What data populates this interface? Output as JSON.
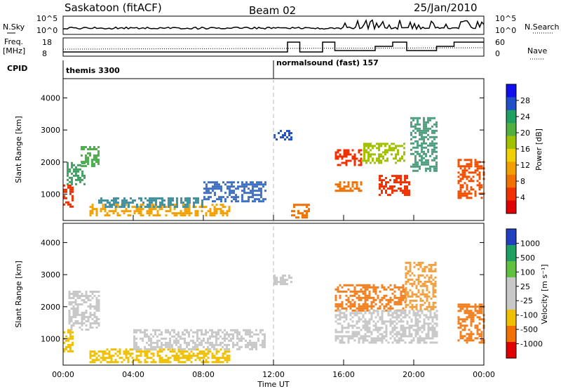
{
  "header": {
    "station": "Saskatoon (fitACF)",
    "beam": "Beam 02",
    "date": "25/Jan/2010"
  },
  "strips": {
    "nsky_label": "N.Sky",
    "nsky_ticks": [
      "10^5",
      "10^0"
    ],
    "nsearch_label": "N.Search",
    "freq_label_1": "Freq.",
    "freq_label_2": "[MHz]",
    "freq_ticks": [
      "18",
      "8"
    ],
    "nave_ticks": [
      "60",
      "0"
    ],
    "nave_label": "Nave",
    "cpid_label": "CPID",
    "cpid_segments": [
      {
        "label": "themis 3300",
        "start_hour": 0
      },
      {
        "label": "normalsound (fast) 157",
        "start_hour": 12.0
      }
    ]
  },
  "chart_data": [
    {
      "type": "heatmap",
      "panel": "power",
      "ylabel": "Slant Range [km]",
      "ylim": [
        180,
        4600
      ],
      "yticks": [
        "1000",
        "2000",
        "3000",
        "4000"
      ],
      "xlim": [
        0,
        24
      ],
      "colorbar_label": "Power [dB]",
      "colorbar_ticks": [
        "28",
        "24",
        "20",
        "16",
        "12",
        "8",
        "4"
      ],
      "colorbar_colors": [
        "#1010ee",
        "#2050c8",
        "#20a060",
        "#50b040",
        "#a0c000",
        "#f0d000",
        "#f0a000",
        "#f07000",
        "#f03000",
        "#e00000"
      ],
      "regions": [
        {
          "t0": 0.0,
          "t1": 0.6,
          "r0": 600,
          "r1": 1300,
          "color": "#f03000"
        },
        {
          "t0": 0.2,
          "t1": 1.2,
          "r0": 1300,
          "r1": 2000,
          "color": "#40a060"
        },
        {
          "t0": 1.0,
          "t1": 2.0,
          "r0": 1900,
          "r1": 2500,
          "color": "#50b050"
        },
        {
          "t0": 1.5,
          "t1": 9.5,
          "r0": 350,
          "r1": 700,
          "color": "#f0a000"
        },
        {
          "t0": 2.0,
          "t1": 8.0,
          "r0": 600,
          "r1": 900,
          "color": "#4090a0"
        },
        {
          "t0": 8.0,
          "t1": 11.5,
          "r0": 800,
          "r1": 1400,
          "color": "#4070c0"
        },
        {
          "t0": 12.0,
          "t1": 13.0,
          "r0": 2700,
          "r1": 3000,
          "color": "#2050c8"
        },
        {
          "t0": 13.0,
          "t1": 14.0,
          "r0": 300,
          "r1": 700,
          "color": "#f07000"
        },
        {
          "t0": 15.5,
          "t1": 17.0,
          "r0": 1900,
          "r1": 2400,
          "color": "#f03000"
        },
        {
          "t0": 15.5,
          "t1": 17.0,
          "r0": 1100,
          "r1": 1400,
          "color": "#f07000"
        },
        {
          "t0": 17.0,
          "t1": 19.5,
          "r0": 2000,
          "r1": 2600,
          "color": "#a0c000"
        },
        {
          "t0": 18.0,
          "t1": 19.8,
          "r0": 1000,
          "r1": 1600,
          "color": "#f03000"
        },
        {
          "t0": 19.8,
          "t1": 21.3,
          "r0": 1700,
          "r1": 3400,
          "color": "#50a080"
        },
        {
          "t0": 22.5,
          "t1": 24.0,
          "r0": 900,
          "r1": 2100,
          "color": "#f05000"
        }
      ]
    },
    {
      "type": "heatmap",
      "panel": "velocity",
      "ylabel": "Slant Range [km]",
      "ylim": [
        180,
        4600
      ],
      "yticks": [
        "1000",
        "2000",
        "3000",
        "4000"
      ],
      "xlim": [
        0,
        24
      ],
      "colorbar_label": "Velocity [m s⁻¹]",
      "colorbar_ticks": [
        "1000",
        "500",
        "100",
        "25",
        "-25",
        "-100",
        "-500",
        "-1000"
      ],
      "colorbar_colors": [
        "#2040c0",
        "#20a060",
        "#60c040",
        "#c8c8c8",
        "#c8c8c8",
        "#f0c000",
        "#f07000",
        "#e00000"
      ],
      "regions": [
        {
          "t0": 0.0,
          "t1": 0.6,
          "r0": 600,
          "r1": 1300,
          "color": "#f0c000"
        },
        {
          "t0": 0.3,
          "t1": 2.0,
          "r0": 1300,
          "r1": 2500,
          "color": "#c8c8c8"
        },
        {
          "t0": 1.5,
          "t1": 9.5,
          "r0": 300,
          "r1": 700,
          "color": "#f0c000"
        },
        {
          "t0": 4.0,
          "t1": 11.5,
          "r0": 700,
          "r1": 1300,
          "color": "#c8c8c8"
        },
        {
          "t0": 12.0,
          "t1": 13.0,
          "r0": 2700,
          "r1": 3000,
          "color": "#c8c8c8"
        },
        {
          "t0": 15.5,
          "t1": 19.5,
          "r0": 1900,
          "r1": 2700,
          "color": "#f08020"
        },
        {
          "t0": 15.5,
          "t1": 21.3,
          "r0": 900,
          "r1": 1900,
          "color": "#c8c8c8"
        },
        {
          "t0": 19.5,
          "t1": 21.3,
          "r0": 1900,
          "r1": 3400,
          "color": "#f0a040"
        },
        {
          "t0": 22.5,
          "t1": 24.0,
          "r0": 900,
          "r1": 2100,
          "color": "#f08020"
        }
      ]
    }
  ],
  "xaxis": {
    "ticks": [
      "00:00",
      "04:00",
      "08:00",
      "12:00",
      "16:00",
      "20:00",
      "00:00"
    ],
    "label": "Time UT"
  }
}
